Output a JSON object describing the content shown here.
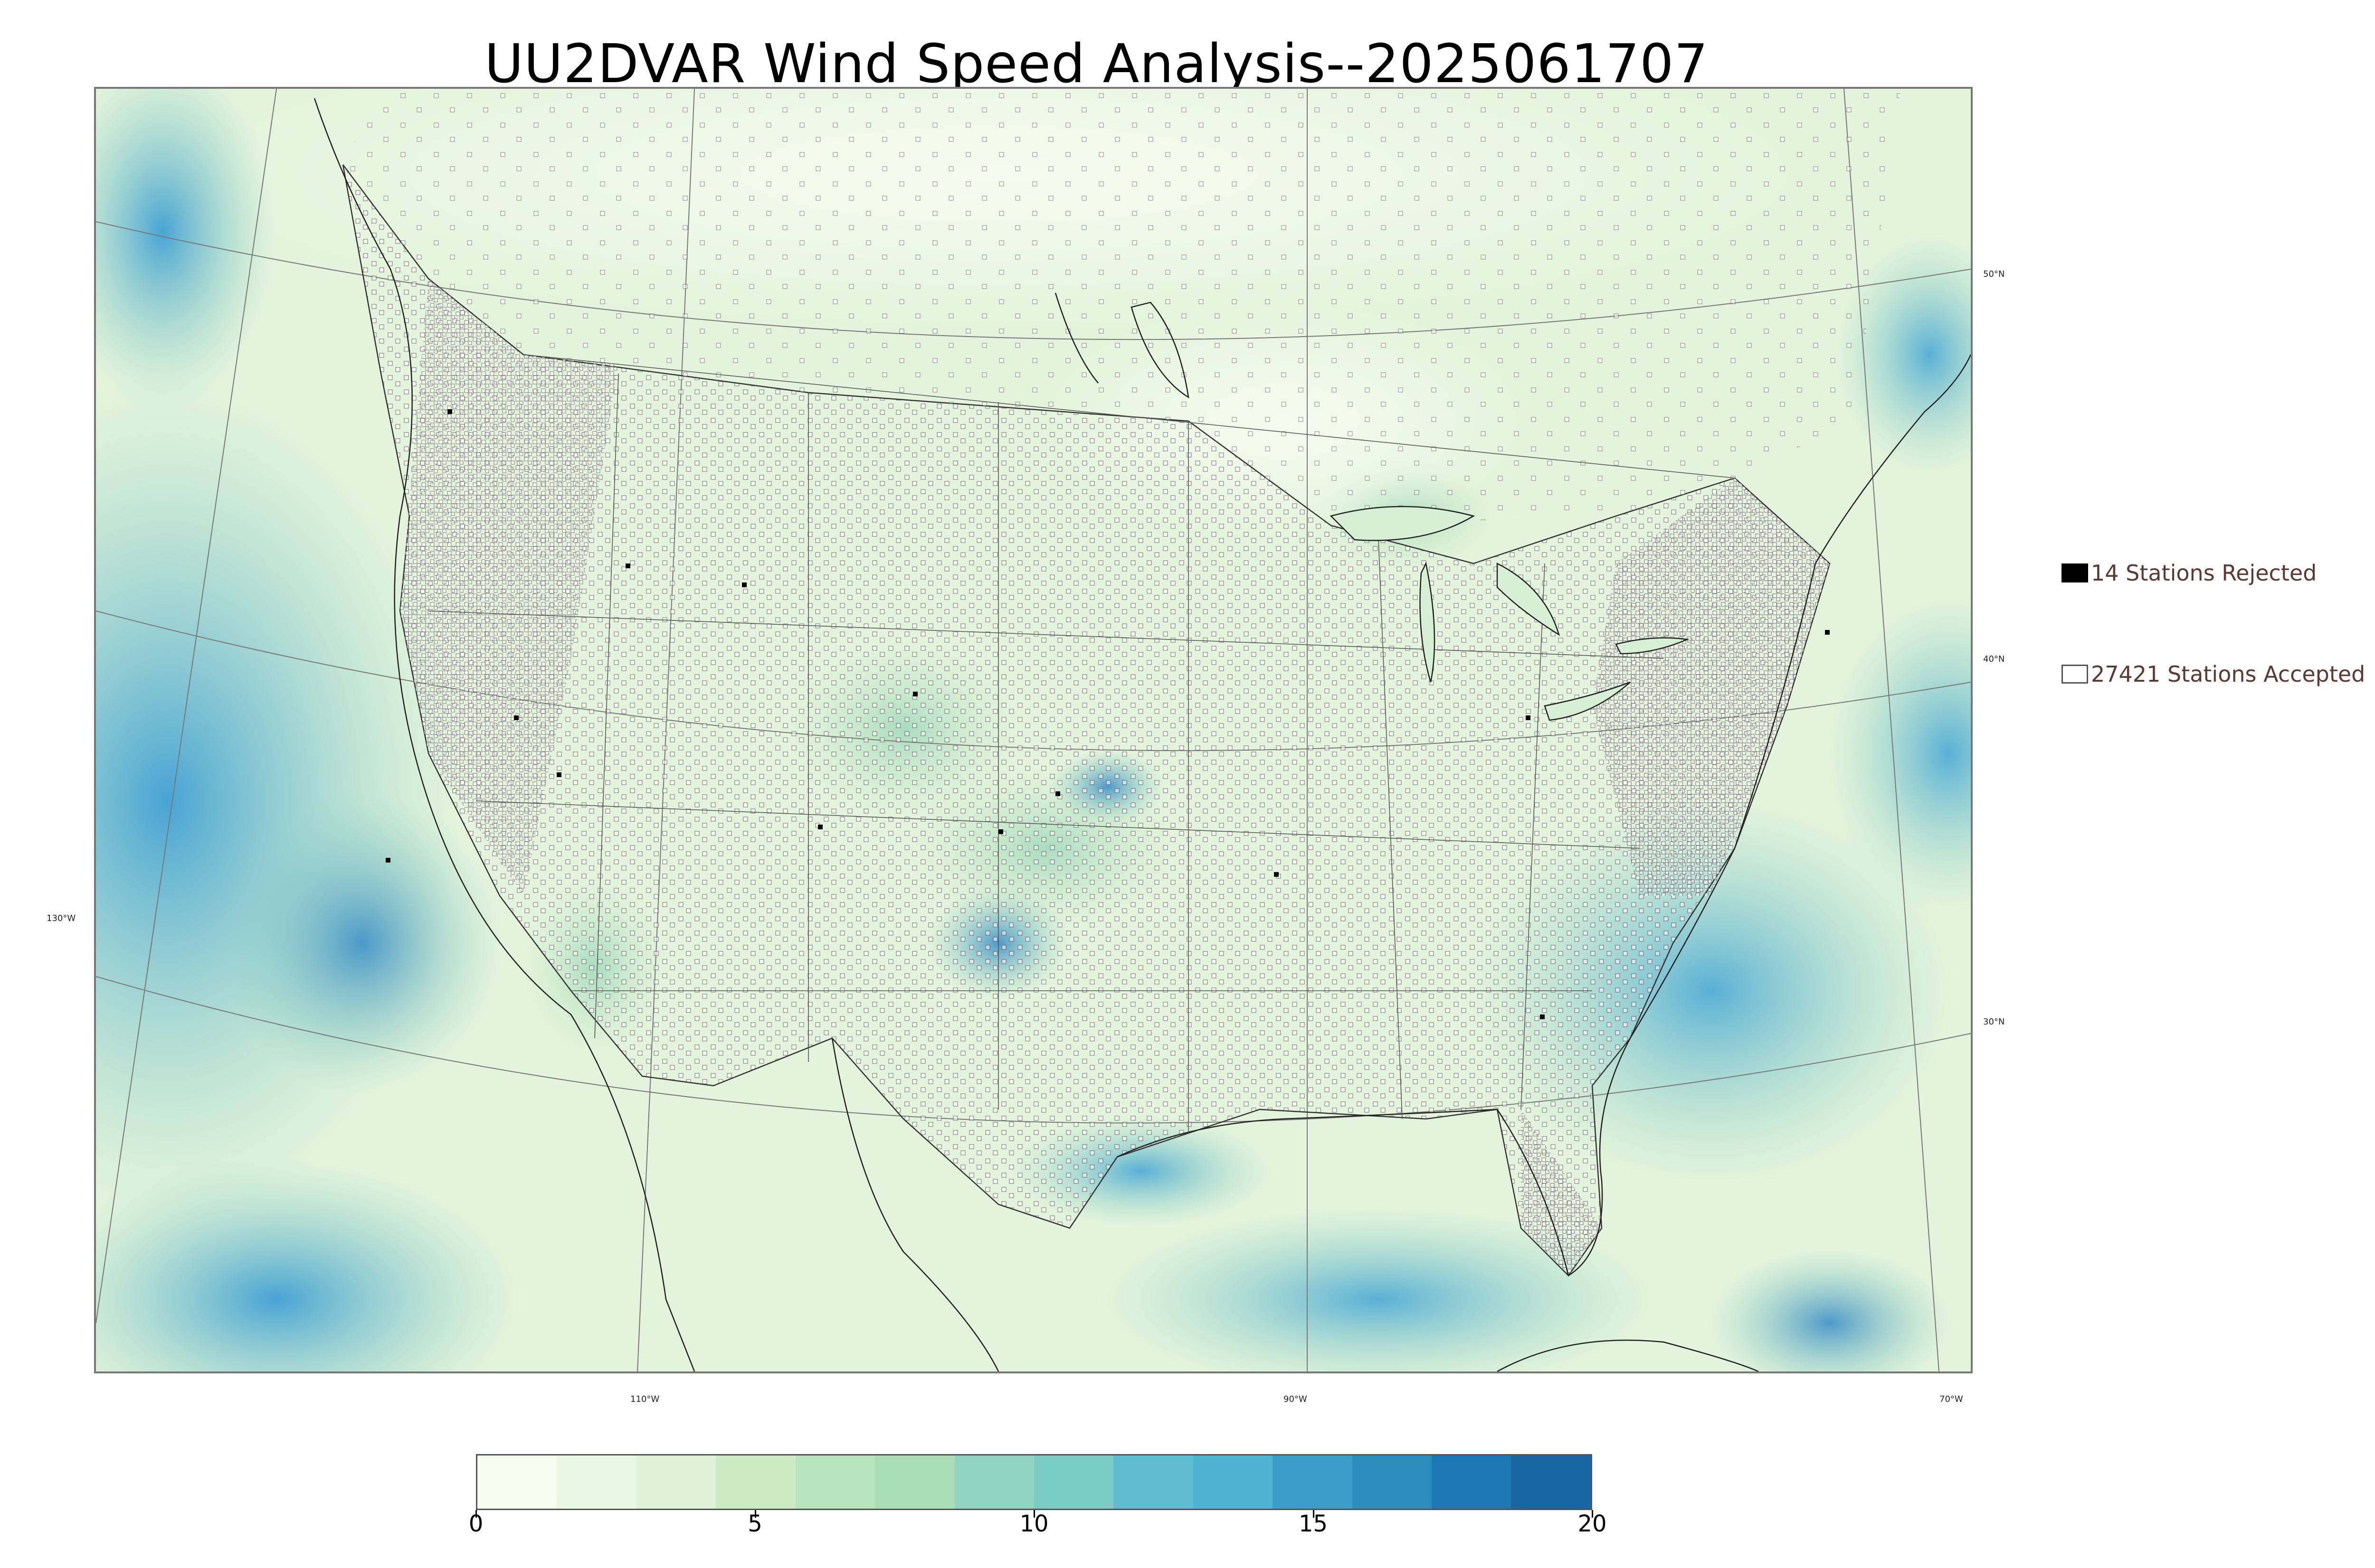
{
  "title": "UU2DVAR Wind Speed Analysis--2025061707",
  "legend": {
    "rejected_label": "14 Stations Rejected",
    "accepted_label": "27421 Stations Accepted"
  },
  "coordinates": {
    "lat_50": "50°N",
    "lat_40": "40°N",
    "lat_30": "30°N",
    "lon_130": "130°W",
    "lon_110": "110°W",
    "lon_90": "90°W",
    "lon_70": "70°W"
  },
  "colorbar": {
    "ticks": [
      "0",
      "5",
      "10",
      "15",
      "20"
    ],
    "colors": [
      "#f7fcf0",
      "#ebf7e5",
      "#ddf2d8",
      "#ccebc5",
      "#b7e3bd",
      "#a8ddb5",
      "#8fd3c0",
      "#7bccc4",
      "#5fbcd0",
      "#4eb3d3",
      "#3b9dc9",
      "#2b8cbe",
      "#1c77b2",
      "#1766a3"
    ]
  },
  "colors": {
    "land_base": "#e6f5e0",
    "ocean_high": "#4ba6d6",
    "station_marker": "#6a5a6a",
    "legend_text": "#5a3a32"
  }
}
